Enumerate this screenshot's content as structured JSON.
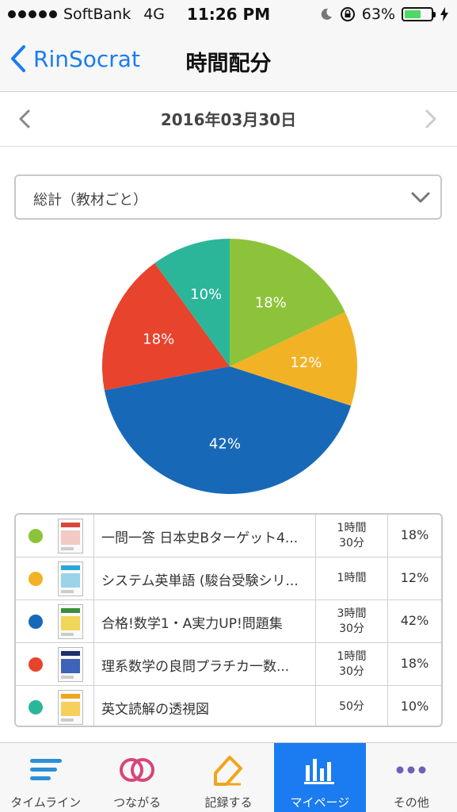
{
  "status_bar": {
    "carrier": "SoftBank",
    "network": "4G",
    "time": "11:26 PM",
    "battery_percent": "63%",
    "battery_level": 0.63
  },
  "nav": {
    "back_label": "RinSocrat",
    "title": "時間配分"
  },
  "date": {
    "label": "2016年03月30日"
  },
  "filter": {
    "selected": "総計（教材ごと）"
  },
  "chart_data": {
    "type": "pie",
    "slices": [
      {
        "label": "一問一答 日本史Bターゲット4...",
        "value": 18,
        "display": "18%",
        "color": "#8dc33a"
      },
      {
        "label": "システム英単語 (駿台受験シリ...",
        "value": 12,
        "display": "12%",
        "color": "#f2b225"
      },
      {
        "label": "合格!数学1・A実力UP!問題集",
        "value": 42,
        "display": "42%",
        "color": "#1769b8"
      },
      {
        "label": "理系数学の良問プラチカ一数...",
        "value": 18,
        "display": "18%",
        "color": "#e8432c"
      },
      {
        "label": "英文読解の透視図",
        "value": 10,
        "display": "10%",
        "color": "#2bb69a"
      }
    ]
  },
  "table": {
    "rows": [
      {
        "title": "一問一答 日本史Bターゲット4...",
        "duration": "1時間\n30分",
        "percent": "18%",
        "color": "#8dc33a",
        "book_colors": [
          "#d9463a",
          "#f3c9c4"
        ]
      },
      {
        "title": "システム英単語 (駿台受験シリ...",
        "duration": "1時間",
        "percent": "12%",
        "color": "#f2b225",
        "book_colors": [
          "#2aa7d8",
          "#9ad3ea"
        ]
      },
      {
        "title": "合格!数学1・A実力UP!問題集",
        "duration": "3時間\n30分",
        "percent": "42%",
        "color": "#1769b8",
        "book_colors": [
          "#3a8f3a",
          "#f2d65a"
        ]
      },
      {
        "title": "理系数学の良問プラチカ一数...",
        "duration": "1時間\n30分",
        "percent": "18%",
        "color": "#e8432c",
        "book_colors": [
          "#1d2f6e",
          "#3e63b8"
        ]
      },
      {
        "title": "英文読解の透視図",
        "duration": "50分",
        "percent": "10%",
        "color": "#2bb69a",
        "book_colors": [
          "#f0a51c",
          "#f7cf5c"
        ]
      }
    ]
  },
  "tabs": [
    {
      "label": "タイムライン",
      "icon": "timeline-icon",
      "color": "#2a8fd4",
      "active": false
    },
    {
      "label": "つながる",
      "icon": "connect-rings-icon",
      "color": "#d8457a",
      "active": false
    },
    {
      "label": "記録する",
      "icon": "record-pencil-icon",
      "color": "#f0a51c",
      "active": false
    },
    {
      "label": "マイページ",
      "icon": "bar-chart-icon",
      "color": "#ffffff",
      "active": true
    },
    {
      "label": "その他",
      "icon": "more-dots-icon",
      "color": "#6f5fb8",
      "active": false
    }
  ]
}
